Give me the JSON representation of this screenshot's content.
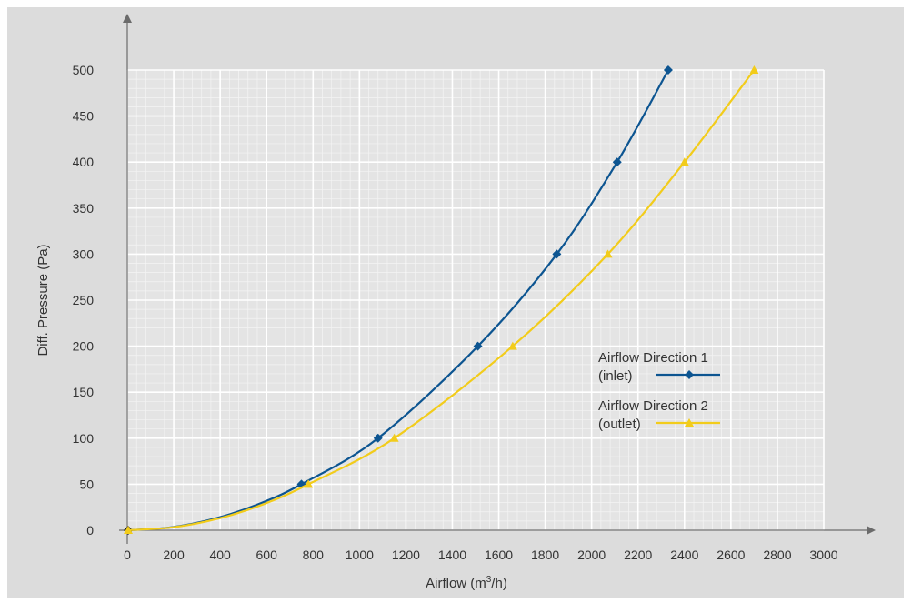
{
  "chart_data": {
    "type": "line",
    "title": "",
    "xlabel": {
      "text": "Airflow (m",
      "sup": "3",
      "suffix": "/h)"
    },
    "ylabel": "Diff. Pressure (Pa)",
    "xlim": [
      0,
      3000
    ],
    "ylim": [
      0,
      500
    ],
    "xticks": [
      0,
      200,
      400,
      600,
      800,
      1000,
      1200,
      1400,
      1600,
      1800,
      2000,
      2200,
      2400,
      2600,
      2800,
      3000
    ],
    "yticks": [
      0,
      50,
      100,
      150,
      200,
      250,
      300,
      350,
      400,
      450,
      500
    ],
    "grid": true,
    "legend_position": "right-middle",
    "series": [
      {
        "name_line1": "Airflow Direction 1",
        "name_line2": "(inlet)",
        "color": "#0d5591",
        "marker": "diamond",
        "x": [
          0,
          750,
          1080,
          1510,
          1850,
          2110,
          2330
        ],
        "y": [
          0,
          50,
          100,
          200,
          300,
          400,
          500
        ]
      },
      {
        "name_line1": "Airflow Direction 2",
        "name_line2": "(outlet)",
        "color": "#f2cc1b",
        "marker": "triangle",
        "x": [
          0,
          780,
          1150,
          1660,
          2070,
          2400,
          2700
        ],
        "y": [
          0,
          50,
          100,
          200,
          300,
          400,
          500
        ]
      }
    ]
  }
}
